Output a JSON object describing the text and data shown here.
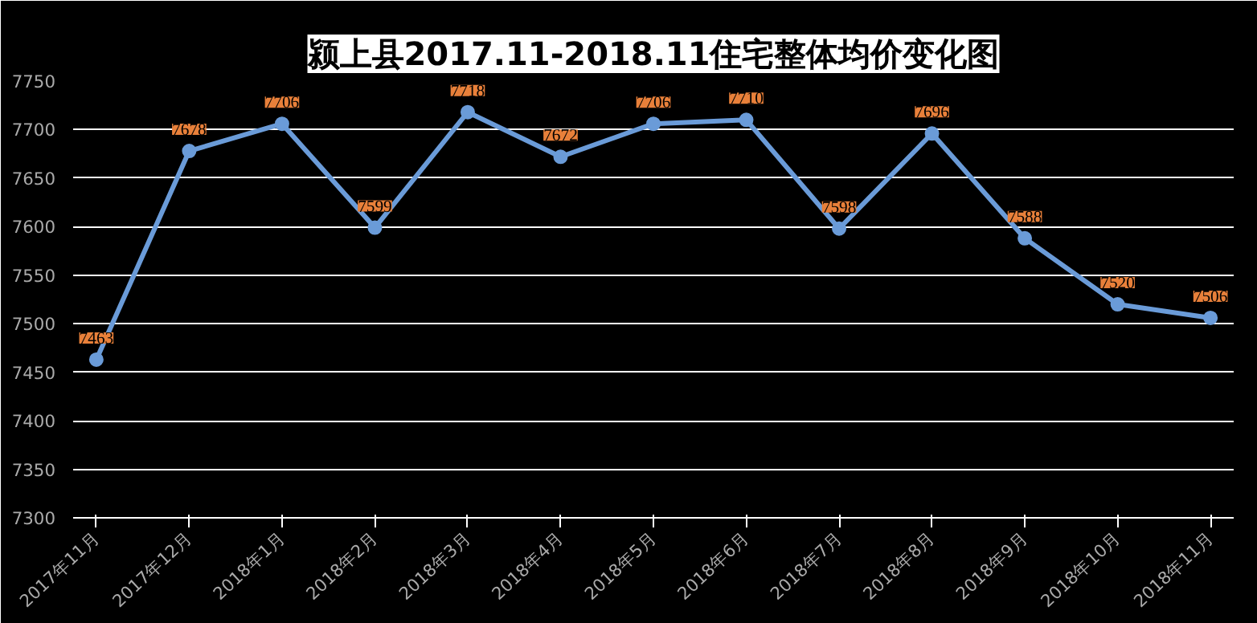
{
  "chart_data": {
    "type": "line",
    "title": "颍上县2017.11-2018.11住宅整体均价变化图",
    "categories": [
      "2017年11月",
      "2017年12月",
      "2018年1月",
      "2018年2月",
      "2018年3月",
      "2018年4月",
      "2018年5月",
      "2018年6月",
      "2018年7月",
      "2018年8月",
      "2018年9月",
      "2018年10月",
      "2018年11月"
    ],
    "series": [
      {
        "color": "#6a9bd8",
        "values": [
          7463,
          7678,
          7706,
          7599,
          7718,
          7672,
          7706,
          7710,
          7598,
          7696,
          7588,
          7520,
          7506
        ]
      }
    ],
    "ylim": [
      7300,
      7750
    ],
    "yticks": [
      7300,
      7350,
      7400,
      7450,
      7500,
      7550,
      7600,
      7650,
      7700,
      7750
    ],
    "grid": "y",
    "marker": "circle",
    "line_style": "solid",
    "data_labels": true
  }
}
